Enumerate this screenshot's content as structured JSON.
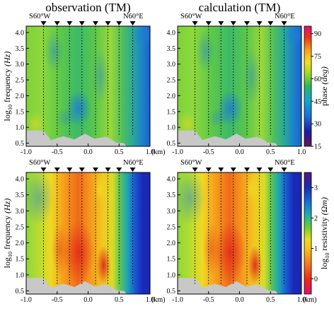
{
  "chart_data": [
    {
      "type": "heatmap",
      "title": "observation (TM)",
      "quantity": "phase",
      "xlim": [
        -1.0,
        1.0
      ],
      "ylim": [
        0.4,
        4.2
      ],
      "xticks": [
        "-1.0",
        "-0.5",
        "0.0",
        "0.5",
        "1.0"
      ],
      "yticks": [
        "0.5",
        "1.0",
        "1.5",
        "2.0",
        "2.5",
        "3.0",
        "3.5",
        "4.0"
      ],
      "end_labels": {
        "left": "S60°W",
        "right": "N60°E"
      },
      "x_unit": "(km)"
    },
    {
      "type": "heatmap",
      "title": "calculation (TM)",
      "quantity": "phase",
      "xlim": [
        -1.0,
        1.0
      ],
      "ylim": [
        0.4,
        4.2
      ],
      "xticks": [
        "-1.0",
        "-0.5",
        "0.0",
        "0.5",
        "1.0"
      ],
      "yticks": [
        "0.5",
        "1.0",
        "1.5",
        "2.0",
        "2.5",
        "3.0",
        "3.5",
        "4.0"
      ],
      "end_labels": {
        "left": "S60°W",
        "right": "N60°E"
      },
      "x_unit": ""
    },
    {
      "type": "heatmap",
      "title": "",
      "quantity": "resistivity",
      "xlim": [
        -1.0,
        1.0
      ],
      "ylim": [
        0.4,
        4.2
      ],
      "xticks": [
        "-1.0",
        "-0.5",
        "0.0",
        "0.5",
        "1.0"
      ],
      "yticks": [
        "0.5",
        "1.0",
        "1.5",
        "2.0",
        "2.5",
        "3.0",
        "3.5",
        "4.0"
      ],
      "end_labels": {
        "left": "S60°W",
        "right": "N60°E"
      },
      "x_unit": "(km)"
    },
    {
      "type": "heatmap",
      "title": "",
      "quantity": "resistivity",
      "xlim": [
        -1.0,
        1.0
      ],
      "ylim": [
        0.4,
        4.2
      ],
      "xticks": [
        "-1.0",
        "-0.5",
        "0.0",
        "0.5",
        "1.0"
      ],
      "yticks": [
        "0.5",
        "1.0",
        "1.5",
        "2.0",
        "2.5",
        "3.0",
        "3.5",
        "4.0"
      ],
      "end_labels": {
        "left": "S60°W",
        "right": "N60°E"
      },
      "x_unit": "(km)"
    }
  ],
  "stations_km": [
    -0.72,
    -0.5,
    -0.3,
    -0.1,
    0.12,
    0.32,
    0.5,
    0.72
  ],
  "terrain": [
    [
      -1.0,
      0.9
    ],
    [
      -0.72,
      0.9
    ],
    [
      -0.6,
      0.6
    ],
    [
      -0.4,
      0.72
    ],
    [
      -0.22,
      0.62
    ],
    [
      -0.05,
      0.8
    ],
    [
      0.1,
      0.64
    ],
    [
      0.28,
      0.7
    ],
    [
      0.38,
      0.62
    ],
    [
      0.45,
      0.52
    ],
    [
      0.58,
      0.5
    ],
    [
      0.62,
      0.4
    ]
  ],
  "phase_colorbar": {
    "ticks": [
      "15",
      "30",
      "45",
      "60",
      "75",
      "90"
    ],
    "range": [
      15,
      95
    ],
    "label_main": "phase ",
    "label_unit": "(deg)"
  },
  "resistivity_colorbar": {
    "ticks": [
      "0",
      "1",
      "2",
      "3"
    ],
    "range": [
      -0.5,
      3.5
    ],
    "label_main": "log",
    "label_sub": "10",
    "label_rest": " resistivity ",
    "label_unit": "(Ωm)"
  },
  "y_label": {
    "main": "log",
    "sub": "10",
    "rest": " frequency ",
    "unit": "(Hz)"
  },
  "colors": {
    "terrain": "#c8c8c8",
    "station_marker": "#000000",
    "frame": "#000000"
  }
}
